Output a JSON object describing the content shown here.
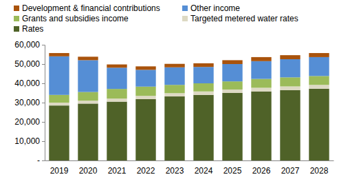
{
  "chart_data": {
    "type": "bar",
    "stacked": true,
    "legend": "top",
    "grid": false,
    "categories": [
      "2019",
      "2020",
      "2021",
      "2022",
      "2023",
      "2024",
      "2025",
      "2026",
      "2027",
      "2028"
    ],
    "series": [
      {
        "name": "Rates",
        "color": "#4f6228",
        "values": [
          28500,
          29500,
          30500,
          31800,
          33200,
          34000,
          35000,
          35800,
          36500,
          37200
        ]
      },
      {
        "name": "Targeted metered water rates",
        "color": "#ddd9c3",
        "values": [
          1500,
          1500,
          1600,
          1700,
          1700,
          1800,
          1800,
          1900,
          1900,
          2000
        ]
      },
      {
        "name": "Grants and subsidies income",
        "color": "#9bbb59",
        "values": [
          4000,
          4500,
          5000,
          4800,
          4300,
          4200,
          4200,
          4600,
          4700,
          4600
        ]
      },
      {
        "name": "Other income",
        "color": "#558ed5",
        "values": [
          20000,
          16500,
          11000,
          8700,
          9100,
          8500,
          9000,
          9200,
          9400,
          9800
        ]
      },
      {
        "name": "Development & financial contributions",
        "color": "#a9530c",
        "values": [
          1700,
          1800,
          1700,
          1800,
          1800,
          1900,
          2000,
          2100,
          2100,
          2100
        ]
      }
    ],
    "ylim": [
      0,
      60000
    ],
    "yticks": [
      {
        "value": 0,
        "label": "-"
      },
      {
        "value": 10000,
        "label": "10,000"
      },
      {
        "value": 20000,
        "label": "20,000"
      },
      {
        "value": 30000,
        "label": "30,000"
      },
      {
        "value": 40000,
        "label": "40,000"
      },
      {
        "value": 50000,
        "label": "50,000"
      },
      {
        "value": 60000,
        "label": "60,000"
      }
    ]
  }
}
